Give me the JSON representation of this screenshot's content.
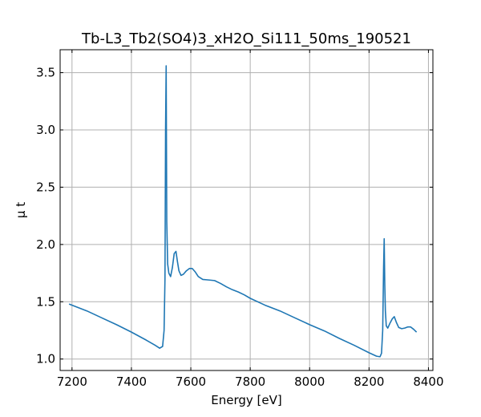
{
  "chart_data": {
    "type": "line",
    "title": "Tb-L3_Tb2(SO4)3_xH2O_Si111_50ms_190521",
    "xlabel": "Energy [eV]",
    "ylabel": "μ t",
    "xlim": [
      7160,
      8415
    ],
    "ylim": [
      0.9,
      3.7
    ],
    "xticks": [
      7200,
      7400,
      7600,
      7800,
      8000,
      8200,
      8400
    ],
    "yticks": [
      1.0,
      1.5,
      2.0,
      2.5,
      3.0,
      3.5
    ],
    "xtick_labels": [
      "7200",
      "7400",
      "7600",
      "7800",
      "8000",
      "8200",
      "8400"
    ],
    "ytick_labels": [
      "1.0",
      "1.5",
      "2.0",
      "2.5",
      "3.0",
      "3.5"
    ],
    "grid": true,
    "ticks_direction": "in",
    "color": "#1f77b4",
    "series": [
      {
        "x": [
          7190,
          7250,
          7300,
          7350,
          7400,
          7450,
          7480,
          7495,
          7505,
          7510,
          7513,
          7515,
          7517,
          7519,
          7522,
          7526,
          7532,
          7538,
          7544,
          7550,
          7555,
          7560,
          7567,
          7575,
          7585,
          7595,
          7605,
          7615,
          7625,
          7640,
          7660,
          7680,
          7700,
          7720,
          7740,
          7760,
          7780,
          7800,
          7850,
          7900,
          7950,
          8000,
          8050,
          8100,
          8150,
          8200,
          8225,
          8237,
          8242,
          8246,
          8249,
          8251,
          8253,
          8255,
          8258,
          8263,
          8270,
          8278,
          8285,
          8292,
          8300,
          8310,
          8320,
          8330,
          8340,
          8350,
          8360
        ],
        "y": [
          1.48,
          1.42,
          1.36,
          1.3,
          1.235,
          1.165,
          1.12,
          1.095,
          1.11,
          1.25,
          1.7,
          3.0,
          3.56,
          2.2,
          1.83,
          1.75,
          1.72,
          1.8,
          1.92,
          1.94,
          1.85,
          1.77,
          1.73,
          1.74,
          1.77,
          1.79,
          1.79,
          1.76,
          1.72,
          1.695,
          1.69,
          1.685,
          1.66,
          1.63,
          1.605,
          1.585,
          1.56,
          1.53,
          1.47,
          1.42,
          1.36,
          1.3,
          1.245,
          1.18,
          1.12,
          1.055,
          1.025,
          1.02,
          1.05,
          1.25,
          1.8,
          2.05,
          1.65,
          1.42,
          1.29,
          1.27,
          1.31,
          1.35,
          1.37,
          1.32,
          1.275,
          1.265,
          1.27,
          1.28,
          1.28,
          1.26,
          1.235
        ]
      }
    ]
  }
}
